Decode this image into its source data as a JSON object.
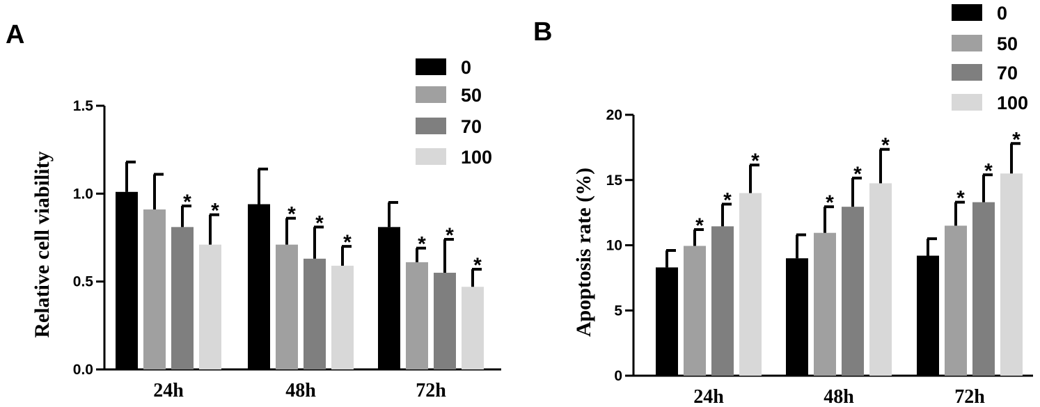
{
  "chart_data": [
    {
      "panel": "A",
      "type": "bar",
      "ylabel": "Relative cell viability",
      "xlabel": "",
      "ylim": [
        0,
        1.5
      ],
      "yticks": [
        "0.0",
        "0.5",
        "1.0",
        "1.5"
      ],
      "categories": [
        "24h",
        "48h",
        "72h"
      ],
      "series": [
        {
          "name": "0",
          "color": "#000000",
          "values": [
            1.01,
            0.94,
            0.81
          ],
          "errors": [
            0.17,
            0.2,
            0.14
          ],
          "significant": [
            false,
            false,
            false
          ]
        },
        {
          "name": "50",
          "color": "#a0a0a0",
          "values": [
            0.91,
            0.71,
            0.61
          ],
          "errors": [
            0.2,
            0.15,
            0.08
          ],
          "significant": [
            false,
            true,
            true
          ]
        },
        {
          "name": "70",
          "color": "#7f7f7f",
          "values": [
            0.81,
            0.63,
            0.55
          ],
          "errors": [
            0.12,
            0.18,
            0.19
          ],
          "significant": [
            true,
            true,
            true
          ]
        },
        {
          "name": "100",
          "color": "#d8d8d8",
          "values": [
            0.71,
            0.59,
            0.47
          ],
          "errors": [
            0.17,
            0.11,
            0.1
          ],
          "significant": [
            true,
            true,
            true
          ]
        }
      ],
      "significance_marker": "*",
      "legend_position": "top-right"
    },
    {
      "panel": "B",
      "type": "bar",
      "ylabel": "Apoptosis rate (%)",
      "xlabel": "",
      "ylim": [
        0,
        20
      ],
      "yticks": [
        "0",
        "5",
        "10",
        "15",
        "20"
      ],
      "categories": [
        "24h",
        "48h",
        "72h"
      ],
      "series": [
        {
          "name": "0",
          "color": "#000000",
          "values": [
            8.3,
            9.0,
            9.2
          ],
          "errors": [
            1.3,
            1.8,
            1.3
          ],
          "significant": [
            false,
            false,
            false
          ]
        },
        {
          "name": "50",
          "color": "#a0a0a0",
          "values": [
            9.95,
            10.95,
            11.5
          ],
          "errors": [
            1.25,
            2.0,
            1.8
          ],
          "significant": [
            true,
            true,
            true
          ]
        },
        {
          "name": "70",
          "color": "#7f7f7f",
          "values": [
            11.45,
            12.95,
            13.3
          ],
          "errors": [
            1.7,
            2.2,
            2.1
          ],
          "significant": [
            true,
            true,
            true
          ]
        },
        {
          "name": "100",
          "color": "#d8d8d8",
          "values": [
            14.0,
            14.75,
            15.5
          ],
          "errors": [
            2.15,
            2.6,
            2.3
          ],
          "significant": [
            true,
            true,
            true
          ]
        }
      ],
      "significance_marker": "*",
      "legend_position": "top-right"
    }
  ]
}
